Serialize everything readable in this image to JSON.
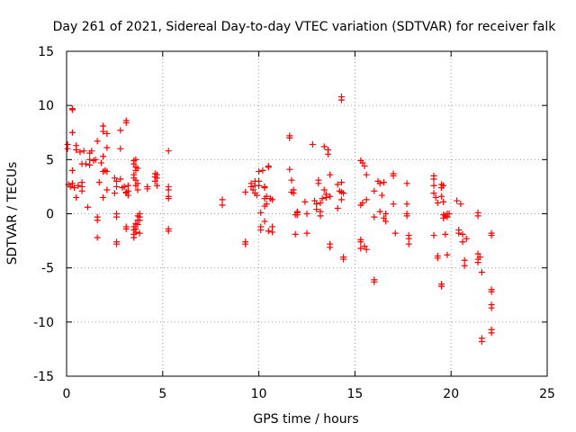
{
  "chart_data": {
    "type": "scatter",
    "title": "Day 261 of 2021, Sidereal Day-to-day VTEC variation (SDTVAR) for receiver falk",
    "xlabel": "GPS time / hours",
    "ylabel": "SDTVAR / TECUs",
    "xlim": [
      0,
      25
    ],
    "ylim": [
      -15,
      15
    ],
    "xticks": [
      0,
      5,
      10,
      15,
      20,
      25
    ],
    "yticks": [
      -15,
      -10,
      -5,
      0,
      5,
      10,
      15
    ],
    "grid": true,
    "marker": "plus",
    "series": [
      {
        "name": "SDTVAR",
        "color": "#ff0000",
        "points": [
          [
            0.05,
            6.4
          ],
          [
            0.05,
            6.0
          ],
          [
            0.1,
            2.7
          ],
          [
            0.2,
            2.5
          ],
          [
            0.3,
            9.7
          ],
          [
            0.3,
            9.6
          ],
          [
            0.3,
            7.5
          ],
          [
            0.3,
            4.0
          ],
          [
            0.3,
            2.8
          ],
          [
            0.4,
            2.4
          ],
          [
            0.5,
            6.3
          ],
          [
            0.5,
            5.9
          ],
          [
            0.5,
            1.5
          ],
          [
            0.6,
            2.6
          ],
          [
            0.7,
            5.7
          ],
          [
            0.8,
            4.6
          ],
          [
            0.8,
            2.9
          ],
          [
            0.8,
            2.5
          ],
          [
            0.8,
            2.1
          ],
          [
            0.9,
            5.8
          ],
          [
            1.0,
            4.6
          ],
          [
            1.1,
            0.6
          ],
          [
            1.2,
            5.6
          ],
          [
            1.2,
            5.0
          ],
          [
            1.2,
            4.5
          ],
          [
            1.3,
            5.8
          ],
          [
            1.4,
            4.9
          ],
          [
            1.5,
            5.0
          ],
          [
            1.6,
            6.7
          ],
          [
            1.6,
            -0.3
          ],
          [
            1.6,
            -0.6
          ],
          [
            1.6,
            -2.2
          ],
          [
            1.7,
            2.9
          ],
          [
            1.8,
            4.7
          ],
          [
            1.9,
            8.1
          ],
          [
            1.9,
            7.6
          ],
          [
            1.9,
            5.3
          ],
          [
            1.9,
            3.9
          ],
          [
            1.9,
            1.5
          ],
          [
            2.0,
            4.0
          ],
          [
            2.1,
            7.4
          ],
          [
            2.1,
            6.1
          ],
          [
            2.1,
            3.9
          ],
          [
            2.1,
            2.2
          ],
          [
            2.5,
            3.3
          ],
          [
            2.5,
            1.9
          ],
          [
            2.6,
            3.0
          ],
          [
            2.6,
            2.5
          ],
          [
            2.6,
            0.0
          ],
          [
            2.6,
            -0.3
          ],
          [
            2.6,
            -2.6
          ],
          [
            2.6,
            -2.8
          ],
          [
            2.8,
            7.7
          ],
          [
            2.8,
            6.0
          ],
          [
            2.8,
            3.2
          ],
          [
            2.9,
            2.4
          ],
          [
            3.0,
            2.5
          ],
          [
            3.1,
            8.6
          ],
          [
            3.1,
            8.4
          ],
          [
            3.1,
            2.0
          ],
          [
            3.2,
            2.6
          ],
          [
            3.1,
            1.9
          ],
          [
            3.2,
            2.1
          ],
          [
            3.2,
            1.7
          ],
          [
            3.1,
            -1.4
          ],
          [
            3.1,
            -1.2
          ],
          [
            3.5,
            4.9
          ],
          [
            3.5,
            4.6
          ],
          [
            3.5,
            3.6
          ],
          [
            3.5,
            3.3
          ],
          [
            3.6,
            5.0
          ],
          [
            3.6,
            4.3
          ],
          [
            3.6,
            4.0
          ],
          [
            3.6,
            3.1
          ],
          [
            3.6,
            2.6
          ],
          [
            3.7,
            4.2
          ],
          [
            3.7,
            2.8
          ],
          [
            3.7,
            2.2
          ],
          [
            3.5,
            -1.2
          ],
          [
            3.5,
            -1.5
          ],
          [
            3.5,
            -1.9
          ],
          [
            3.5,
            -2.2
          ],
          [
            3.6,
            -0.9
          ],
          [
            3.6,
            -1.4
          ],
          [
            3.6,
            -1.7
          ],
          [
            3.7,
            -0.2
          ],
          [
            3.7,
            -0.6
          ],
          [
            3.7,
            -1.0
          ],
          [
            3.8,
            0.0
          ],
          [
            3.8,
            -0.3
          ],
          [
            3.8,
            -0.6
          ],
          [
            3.8,
            -1.8
          ],
          [
            4.2,
            2.3
          ],
          [
            4.2,
            2.5
          ],
          [
            4.6,
            3.7
          ],
          [
            4.6,
            3.4
          ],
          [
            4.6,
            3.0
          ],
          [
            4.7,
            3.6
          ],
          [
            4.7,
            3.3
          ],
          [
            4.7,
            2.6
          ],
          [
            5.3,
            5.8
          ],
          [
            5.3,
            2.5
          ],
          [
            5.3,
            2.2
          ],
          [
            5.3,
            1.6
          ],
          [
            5.3,
            1.4
          ],
          [
            5.3,
            -1.4
          ],
          [
            5.3,
            -1.6
          ],
          [
            8.1,
            1.3
          ],
          [
            8.1,
            0.8
          ],
          [
            9.3,
            2.0
          ],
          [
            9.3,
            -2.6
          ],
          [
            9.3,
            -2.8
          ],
          [
            9.6,
            2.8
          ],
          [
            9.6,
            2.5
          ],
          [
            9.7,
            2.2
          ],
          [
            9.8,
            3.0
          ],
          [
            9.8,
            2.6
          ],
          [
            9.8,
            1.9
          ],
          [
            9.9,
            1.7
          ],
          [
            10.0,
            3.9
          ],
          [
            10.0,
            3.0
          ],
          [
            10.0,
            2.6
          ],
          [
            10.1,
            0.1
          ],
          [
            10.1,
            -1.2
          ],
          [
            10.1,
            -1.5
          ],
          [
            10.2,
            4.0
          ],
          [
            10.3,
            2.5
          ],
          [
            10.3,
            2.4
          ],
          [
            10.3,
            1.4
          ],
          [
            10.3,
            0.7
          ],
          [
            10.3,
            -0.7
          ],
          [
            10.4,
            1.6
          ],
          [
            10.4,
            0.9
          ],
          [
            10.5,
            4.4
          ],
          [
            10.5,
            4.3
          ],
          [
            10.5,
            -1.6
          ],
          [
            10.6,
            1.4
          ],
          [
            10.7,
            1.3
          ],
          [
            10.7,
            -1.2
          ],
          [
            10.7,
            -1.7
          ],
          [
            11.6,
            7.2
          ],
          [
            11.6,
            7.0
          ],
          [
            11.6,
            4.1
          ],
          [
            11.7,
            3.1
          ],
          [
            11.7,
            2.0
          ],
          [
            11.8,
            2.2
          ],
          [
            11.8,
            1.9
          ],
          [
            11.9,
            -0.1
          ],
          [
            11.9,
            -1.9
          ],
          [
            12.0,
            0.2
          ],
          [
            12.0,
            0.1
          ],
          [
            12.0,
            -0.1
          ],
          [
            12.4,
            1.1
          ],
          [
            12.5,
            0.0
          ],
          [
            12.5,
            -1.8
          ],
          [
            12.8,
            6.4
          ],
          [
            12.9,
            1.2
          ],
          [
            13.0,
            0.9
          ],
          [
            13.0,
            0.4
          ],
          [
            13.1,
            3.1
          ],
          [
            13.1,
            2.8
          ],
          [
            13.2,
            1.0
          ],
          [
            13.2,
            0.2
          ],
          [
            13.2,
            -0.2
          ],
          [
            13.3,
            1.4
          ],
          [
            13.4,
            6.2
          ],
          [
            13.4,
            2.2
          ],
          [
            13.5,
            1.8
          ],
          [
            13.5,
            1.5
          ],
          [
            13.6,
            5.9
          ],
          [
            13.6,
            5.5
          ],
          [
            13.7,
            3.6
          ],
          [
            13.7,
            1.6
          ],
          [
            13.7,
            -2.8
          ],
          [
            13.7,
            -3.1
          ],
          [
            14.1,
            0.5
          ],
          [
            14.1,
            2.7
          ],
          [
            14.2,
            2.1
          ],
          [
            14.3,
            2.9
          ],
          [
            14.3,
            2.0
          ],
          [
            14.3,
            1.3
          ],
          [
            14.3,
            10.8
          ],
          [
            14.3,
            10.5
          ],
          [
            14.4,
            1.9
          ],
          [
            14.4,
            -4.0
          ],
          [
            14.4,
            -4.2
          ],
          [
            15.3,
            4.9
          ],
          [
            15.4,
            4.7
          ],
          [
            15.5,
            4.4
          ],
          [
            15.6,
            3.6
          ],
          [
            15.3,
            0.8
          ],
          [
            15.4,
            1.0
          ],
          [
            15.6,
            1.3
          ],
          [
            15.3,
            -2.4
          ],
          [
            15.3,
            -2.6
          ],
          [
            15.3,
            -3.2
          ],
          [
            15.5,
            -3.0
          ],
          [
            15.6,
            -3.3
          ],
          [
            16.0,
            2.1
          ],
          [
            16.0,
            -0.3
          ],
          [
            16.0,
            -6.1
          ],
          [
            16.0,
            -6.3
          ],
          [
            16.2,
            3.0
          ],
          [
            16.3,
            2.8
          ],
          [
            16.4,
            1.7
          ],
          [
            16.5,
            2.9
          ],
          [
            16.3,
            0.2
          ],
          [
            16.5,
            -0.4
          ],
          [
            16.6,
            0.0
          ],
          [
            16.6,
            -0.7
          ],
          [
            17.0,
            3.7
          ],
          [
            17.0,
            3.5
          ],
          [
            17.0,
            0.9
          ],
          [
            17.1,
            -1.8
          ],
          [
            17.7,
            2.8
          ],
          [
            17.7,
            0.9
          ],
          [
            17.7,
            0.0
          ],
          [
            17.7,
            -0.2
          ],
          [
            17.8,
            -2.0
          ],
          [
            17.8,
            -2.3
          ],
          [
            17.8,
            -2.8
          ],
          [
            19.1,
            3.5
          ],
          [
            19.1,
            3.2
          ],
          [
            19.1,
            2.6
          ],
          [
            19.1,
            1.9
          ],
          [
            19.2,
            1.5
          ],
          [
            19.3,
            1.0
          ],
          [
            19.1,
            -2.0
          ],
          [
            19.3,
            -3.9
          ],
          [
            19.3,
            -4.1
          ],
          [
            19.5,
            2.7
          ],
          [
            19.5,
            2.4
          ],
          [
            19.5,
            1.6
          ],
          [
            19.6,
            2.6
          ],
          [
            19.6,
            1.1
          ],
          [
            19.6,
            -0.1
          ],
          [
            19.6,
            -0.4
          ],
          [
            19.5,
            -6.5
          ],
          [
            19.5,
            -6.7
          ],
          [
            19.7,
            -0.2
          ],
          [
            19.7,
            -1.9
          ],
          [
            19.8,
            0.0
          ],
          [
            19.8,
            -0.3
          ],
          [
            19.8,
            -3.8
          ],
          [
            19.9,
            0.0
          ],
          [
            20.3,
            1.2
          ],
          [
            20.4,
            -1.5
          ],
          [
            20.4,
            -1.8
          ],
          [
            20.5,
            0.9
          ],
          [
            20.6,
            -1.9
          ],
          [
            20.6,
            -2.6
          ],
          [
            20.7,
            -4.3
          ],
          [
            20.7,
            -4.8
          ],
          [
            20.8,
            -2.3
          ],
          [
            21.4,
            0.1
          ],
          [
            21.4,
            -0.2
          ],
          [
            21.4,
            -3.7
          ],
          [
            21.4,
            -4.2
          ],
          [
            21.4,
            -4.5
          ],
          [
            21.5,
            -4.0
          ],
          [
            21.6,
            -5.4
          ],
          [
            21.6,
            -11.5
          ],
          [
            21.6,
            -11.8
          ],
          [
            22.1,
            -1.8
          ],
          [
            22.1,
            -2.0
          ],
          [
            22.1,
            -7.0
          ],
          [
            22.1,
            -7.2
          ],
          [
            22.1,
            -8.4
          ],
          [
            22.1,
            -8.7
          ],
          [
            22.1,
            -10.7
          ],
          [
            22.1,
            -11.0
          ]
        ]
      }
    ]
  }
}
